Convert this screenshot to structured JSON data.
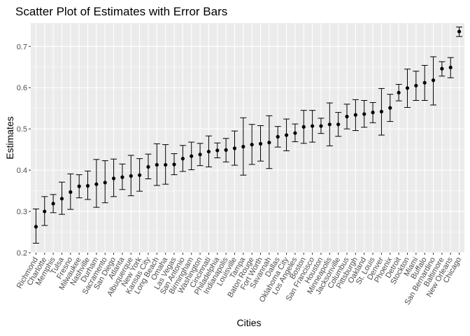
{
  "chart_data": {
    "type": "scatter",
    "title": "Scatter Plot of Estimates with Error Bars",
    "xlabel": "Cities",
    "ylabel": "Estimates",
    "ylim": [
      0.2,
      0.75
    ],
    "yticks": [
      0.2,
      0.3,
      0.4,
      0.5,
      0.6,
      0.7
    ],
    "grid": true,
    "error_bars": true,
    "points": [
      {
        "city": "Richmond",
        "est": 0.263,
        "lo": 0.223,
        "hi": 0.306
      },
      {
        "city": "Charlotte",
        "est": 0.3,
        "lo": 0.266,
        "hi": 0.336
      },
      {
        "city": "Memphis",
        "est": 0.319,
        "lo": 0.297,
        "hi": 0.341
      },
      {
        "city": "Tulsa",
        "est": 0.331,
        "lo": 0.293,
        "hi": 0.371
      },
      {
        "city": "Fresno",
        "est": 0.347,
        "lo": 0.305,
        "hi": 0.391
      },
      {
        "city": "Milwaukee",
        "est": 0.361,
        "lo": 0.333,
        "hi": 0.389
      },
      {
        "city": "Nashville",
        "est": 0.362,
        "lo": 0.329,
        "hi": 0.398
      },
      {
        "city": "Durham",
        "est": 0.366,
        "lo": 0.31,
        "hi": 0.426
      },
      {
        "city": "Sacramento",
        "est": 0.37,
        "lo": 0.321,
        "hi": 0.423
      },
      {
        "city": "San Diego",
        "est": 0.38,
        "lo": 0.336,
        "hi": 0.427
      },
      {
        "city": "Atlanta",
        "est": 0.383,
        "lo": 0.353,
        "hi": 0.415
      },
      {
        "city": "Albuquerque",
        "est": 0.386,
        "lo": 0.338,
        "hi": 0.436
      },
      {
        "city": "New York",
        "est": 0.388,
        "lo": 0.349,
        "hi": 0.428
      },
      {
        "city": "Kansas City",
        "est": 0.408,
        "lo": 0.379,
        "hi": 0.439
      },
      {
        "city": "Long Beach",
        "est": 0.413,
        "lo": 0.363,
        "hi": 0.464
      },
      {
        "city": "Omaha",
        "est": 0.413,
        "lo": 0.366,
        "hi": 0.462
      },
      {
        "city": "Las Vegas",
        "est": 0.414,
        "lo": 0.389,
        "hi": 0.44
      },
      {
        "city": "San Antonio",
        "est": 0.428,
        "lo": 0.397,
        "hi": 0.46
      },
      {
        "city": "Birmingham",
        "est": 0.434,
        "lo": 0.401,
        "hi": 0.468
      },
      {
        "city": "Washington",
        "est": 0.438,
        "lo": 0.411,
        "hi": 0.465
      },
      {
        "city": "Cincinnati",
        "est": 0.445,
        "lo": 0.408,
        "hi": 0.483
      },
      {
        "city": "Philadelphia",
        "est": 0.448,
        "lo": 0.43,
        "hi": 0.466
      },
      {
        "city": "Indianapolis",
        "est": 0.449,
        "lo": 0.42,
        "hi": 0.477
      },
      {
        "city": "Louisville",
        "est": 0.453,
        "lo": 0.412,
        "hi": 0.495
      },
      {
        "city": "Tampa",
        "est": 0.457,
        "lo": 0.388,
        "hi": 0.527
      },
      {
        "city": "Baton Rouge",
        "est": 0.462,
        "lo": 0.414,
        "hi": 0.511
      },
      {
        "city": "Fort Worth",
        "est": 0.464,
        "lo": 0.422,
        "hi": 0.508
      },
      {
        "city": "Savannah",
        "est": 0.467,
        "lo": 0.404,
        "hi": 0.532
      },
      {
        "city": "Dallas",
        "est": 0.481,
        "lo": 0.456,
        "hi": 0.506
      },
      {
        "city": "Oklahoma City",
        "est": 0.485,
        "lo": 0.447,
        "hi": 0.524
      },
      {
        "city": "Los Angeles",
        "est": 0.49,
        "lo": 0.469,
        "hi": 0.512
      },
      {
        "city": "Boston",
        "est": 0.505,
        "lo": 0.465,
        "hi": 0.545
      },
      {
        "city": "San Francisco",
        "est": 0.507,
        "lo": 0.468,
        "hi": 0.545
      },
      {
        "city": "Houston",
        "est": 0.507,
        "lo": 0.489,
        "hi": 0.526
      },
      {
        "city": "Minneapolis",
        "est": 0.511,
        "lo": 0.459,
        "hi": 0.563
      },
      {
        "city": "Jacksonville",
        "est": 0.511,
        "lo": 0.482,
        "hi": 0.54
      },
      {
        "city": "Columbus",
        "est": 0.53,
        "lo": 0.5,
        "hi": 0.56
      },
      {
        "city": "Pittsburgh",
        "est": 0.534,
        "lo": 0.496,
        "hi": 0.571
      },
      {
        "city": "Oakland",
        "est": 0.536,
        "lo": 0.504,
        "hi": 0.569
      },
      {
        "city": "St. Louis",
        "est": 0.54,
        "lo": 0.515,
        "hi": 0.564
      },
      {
        "city": "Denver",
        "est": 0.542,
        "lo": 0.485,
        "hi": 0.598
      },
      {
        "city": "Phoenix",
        "est": 0.551,
        "lo": 0.518,
        "hi": 0.584
      },
      {
        "city": "Detroit",
        "est": 0.588,
        "lo": 0.568,
        "hi": 0.608
      },
      {
        "city": "Stockton",
        "est": 0.599,
        "lo": 0.552,
        "hi": 0.645
      },
      {
        "city": "Miami",
        "est": 0.605,
        "lo": 0.569,
        "hi": 0.64
      },
      {
        "city": "Buffalo",
        "est": 0.612,
        "lo": 0.569,
        "hi": 0.654
      },
      {
        "city": "San Bernardino",
        "est": 0.618,
        "lo": 0.558,
        "hi": 0.675
      },
      {
        "city": "Baltimore",
        "est": 0.646,
        "lo": 0.628,
        "hi": 0.663
      },
      {
        "city": "New Orleans",
        "est": 0.649,
        "lo": 0.624,
        "hi": 0.673
      },
      {
        "city": "Chicago",
        "est": 0.736,
        "lo": 0.724,
        "hi": 0.747
      }
    ]
  }
}
